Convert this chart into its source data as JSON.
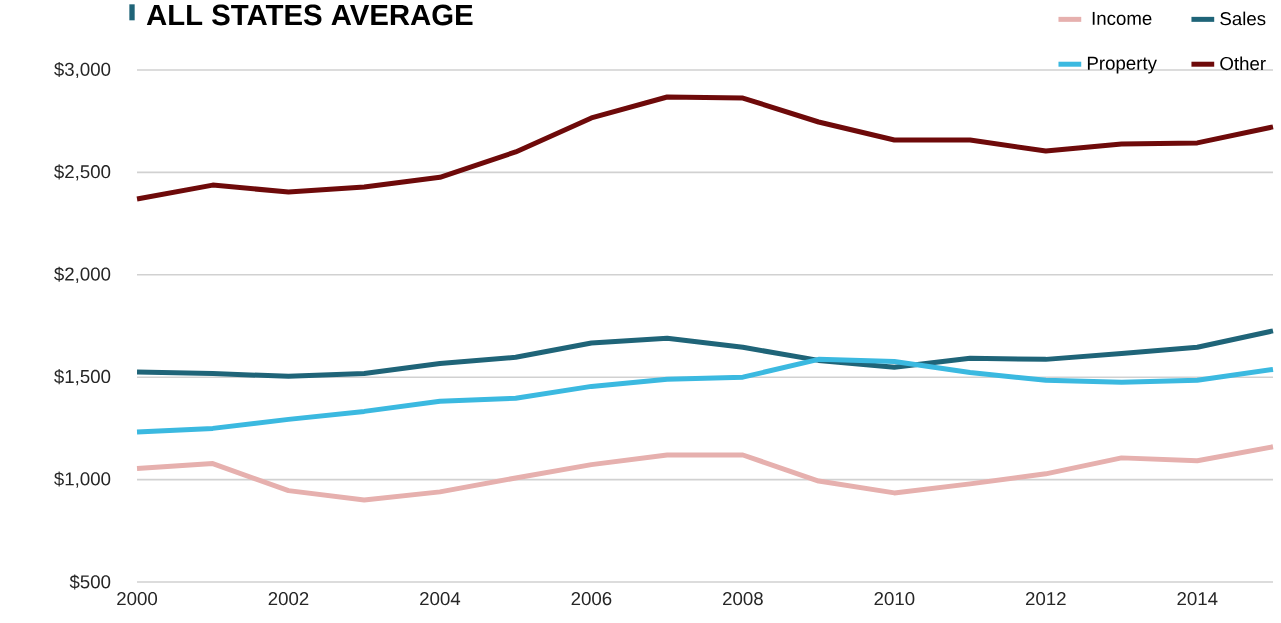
{
  "chart_data": {
    "type": "line",
    "title": "ALL STATES AVERAGE",
    "x": [
      2000,
      2001,
      2002,
      2003,
      2004,
      2005,
      2006,
      2007,
      2008,
      2009,
      2010,
      2011,
      2012,
      2013,
      2014,
      2015
    ],
    "series": [
      {
        "name": "Income",
        "color": "#e6b0ae",
        "values": [
          1054,
          1078,
          946,
          900,
          940,
          1008,
          1073,
          1120,
          1120,
          993,
          935,
          979,
          1028,
          1106,
          1092,
          1160
        ]
      },
      {
        "name": "Sales",
        "color": "#1f6478",
        "values": [
          1525,
          1518,
          1504,
          1518,
          1567,
          1597,
          1667,
          1690,
          1646,
          1582,
          1548,
          1592,
          1587,
          1616,
          1646,
          1726
        ]
      },
      {
        "name": "Property",
        "color": "#3bb9e0",
        "values": [
          1232,
          1250,
          1294,
          1333,
          1382,
          1397,
          1455,
          1490,
          1500,
          1587,
          1577,
          1523,
          1485,
          1475,
          1485,
          1538
        ]
      },
      {
        "name": "Other",
        "color": "#6e0a0a",
        "values": [
          2370,
          2438,
          2404,
          2429,
          2476,
          2600,
          2766,
          2868,
          2863,
          2746,
          2658,
          2658,
          2604,
          2639,
          2644,
          2722
        ]
      }
    ],
    "xlim": [
      2000,
      2015
    ],
    "xticks": [
      2000,
      2002,
      2004,
      2006,
      2008,
      2010,
      2012,
      2014
    ],
    "ylim": [
      500,
      3000
    ],
    "yticks": [
      {
        "value": 500,
        "label": "$500"
      },
      {
        "value": 1000,
        "label": "$1,000"
      },
      {
        "value": 1500,
        "label": "$1,500"
      },
      {
        "value": 2000,
        "label": "$2,000"
      },
      {
        "value": 2500,
        "label": "$2,500"
      },
      {
        "value": 3000,
        "label": "$3,000"
      }
    ],
    "grid": "y",
    "legend": "top right",
    "marker": "none",
    "line_style": "solid"
  }
}
